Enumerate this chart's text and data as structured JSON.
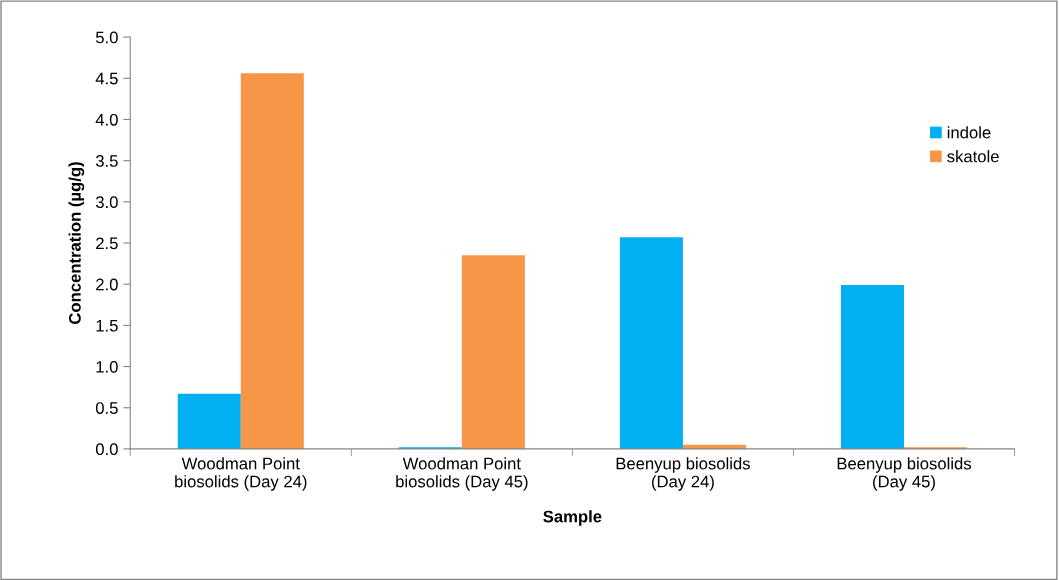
{
  "chart_data": {
    "type": "bar",
    "xlabel": "Sample",
    "ylabel": "Concentration (µg/g)",
    "categories": [
      "Woodman Point\nbiosolids (Day 24)",
      "Woodman Point\nbiosolids (Day 45)",
      "Beenyup biosolids\n(Day 24)",
      "Beenyup biosolids\n(Day 45)"
    ],
    "series": [
      {
        "name": "indole",
        "color": "#00b0f0",
        "values": [
          0.67,
          0.02,
          2.57,
          1.99
        ]
      },
      {
        "name": "skatole",
        "color": "#f79646",
        "values": [
          4.56,
          2.35,
          0.05,
          0.02
        ]
      }
    ],
    "ylim": [
      0,
      5
    ],
    "yticks": [
      {
        "value": 0,
        "label": "0.0"
      },
      {
        "value": 0.5,
        "label": "0.5"
      },
      {
        "value": 1,
        "label": "1.0"
      },
      {
        "value": 1.5,
        "label": "1.5"
      },
      {
        "value": 2,
        "label": "2.0"
      },
      {
        "value": 2.5,
        "label": "2.5"
      },
      {
        "value": 3,
        "label": "3.0"
      },
      {
        "value": 3.5,
        "label": "3.5"
      },
      {
        "value": 4,
        "label": "4.0"
      },
      {
        "value": 4.5,
        "label": "4.5"
      },
      {
        "value": 5,
        "label": "5.0"
      }
    ],
    "grid": false,
    "legend": "top right"
  }
}
